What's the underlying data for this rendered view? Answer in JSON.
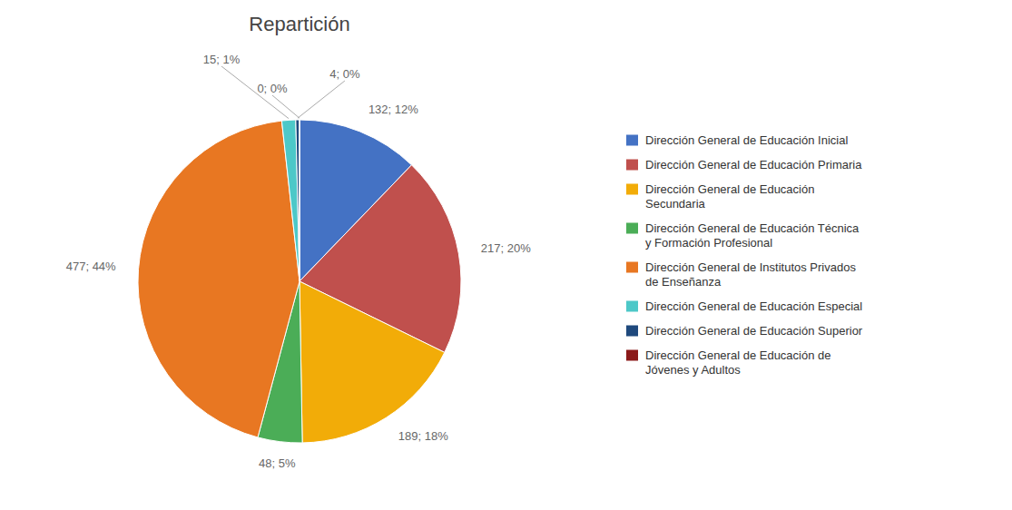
{
  "chart_data": {
    "type": "pie",
    "title": "Repartición",
    "categories": [
      "Dirección General de Educación Inicial",
      "Dirección General de Educación Primaria",
      "Dirección General de Educación\nSecundaria",
      "Dirección General de Educación Técnica\ny Formación Profesional",
      "Dirección General de Institutos Privados\nde Enseñanza",
      "Dirección General de Educación Especial",
      "Dirección General de Educación Superior",
      "Dirección General de Educación de\nJóvenes y Adultos"
    ],
    "values": [
      132,
      217,
      189,
      48,
      477,
      15,
      4,
      0
    ],
    "value_labels": [
      "132; 12%",
      "217; 20%",
      "189; 18%",
      "48; 5%",
      "477; 44%",
      "15; 1%",
      "4; 0%",
      "0; 0%"
    ],
    "colors": [
      "#4472C4",
      "#C0504D",
      "#F2AC08",
      "#4BAD57",
      "#E87722",
      "#4DC8C8",
      "#1F497D",
      "#8B1A1A"
    ],
    "data_labels": true,
    "legend": "right"
  }
}
